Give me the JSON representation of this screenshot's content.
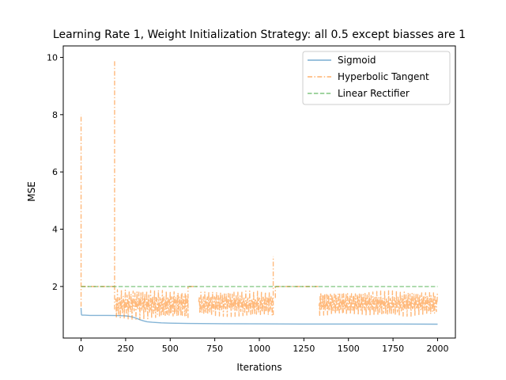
{
  "chart_data": {
    "type": "line",
    "title": "Learning Rate 1, Weight Initialization Strategy: all 0.5 except biasses are 1",
    "xlabel": "Iterations",
    "ylabel": "MSE",
    "xlim": [
      -100,
      2100
    ],
    "ylim": [
      0.2,
      10.4
    ],
    "x_ticks": [
      0,
      250,
      500,
      750,
      1000,
      1250,
      1500,
      1750,
      2000
    ],
    "y_ticks": [
      2,
      4,
      6,
      8,
      10
    ],
    "grid": false,
    "legend_position": "top-right",
    "series": [
      {
        "name": "Sigmoid",
        "color": "#1f77b4",
        "style": "solid",
        "x": [
          0,
          1,
          2,
          3,
          5,
          10,
          20,
          50,
          100,
          150,
          200,
          230,
          250,
          270,
          290,
          310,
          330,
          350,
          370,
          400,
          450,
          500,
          600,
          800,
          1000,
          1250,
          1500,
          1750,
          2000
        ],
        "y": [
          1.25,
          1.1,
          1.03,
          1.01,
          1.0,
          1.0,
          1.0,
          0.99,
          0.99,
          0.99,
          0.985,
          0.98,
          0.975,
          0.96,
          0.93,
          0.89,
          0.84,
          0.8,
          0.77,
          0.75,
          0.73,
          0.72,
          0.71,
          0.7,
          0.695,
          0.69,
          0.69,
          0.69,
          0.685
        ]
      },
      {
        "name": "Hyperbolic Tangent",
        "color": "#ff7f0e",
        "style": "dashdot",
        "segments": [
          {
            "type": "spike",
            "x": 0,
            "y_range": [
              1.3,
              8.0
            ]
          },
          {
            "type": "flat",
            "x_range": [
              1,
              185
            ],
            "y": 2.0
          },
          {
            "type": "spike",
            "x": 188,
            "y_range": [
              1.2,
              9.9
            ]
          },
          {
            "type": "oscillate",
            "x_range": [
              192,
              600
            ],
            "y_range": [
              0.85,
              1.9
            ]
          },
          {
            "type": "spike",
            "x": 600,
            "y_range": [
              0.9,
              2.0
            ]
          },
          {
            "type": "flat",
            "x_range": [
              605,
              658
            ],
            "y": 2.0
          },
          {
            "type": "oscillate",
            "x_range": [
              660,
              1075
            ],
            "y_range": [
              0.95,
              1.85
            ]
          },
          {
            "type": "spike",
            "x": 1078,
            "y_range": [
              1.0,
              3.05
            ]
          },
          {
            "type": "spike",
            "x": 1090,
            "y_range": [
              1.6,
              2.0
            ]
          },
          {
            "type": "flat",
            "x_range": [
              1092,
              1330
            ],
            "y": 2.0
          },
          {
            "type": "oscillate",
            "x_range": [
              1335,
              2000
            ],
            "y_range": [
              0.95,
              1.85
            ]
          }
        ]
      },
      {
        "name": "Linear Rectifier",
        "color": "#2ca02c",
        "style": "dashed",
        "x": [
          0,
          2000
        ],
        "y": [
          2.0,
          2.0
        ]
      }
    ]
  }
}
